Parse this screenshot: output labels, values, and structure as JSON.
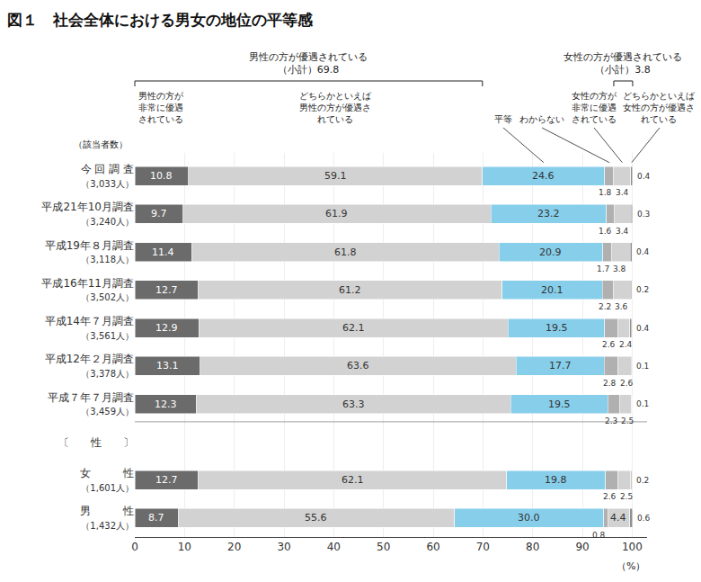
{
  "chart_data": {
    "type": "bar",
    "title": "図１　社会全体における男女の地位の平等感",
    "orientation": "horizontal",
    "stacked": true,
    "data_labels": true,
    "grid": true,
    "categories": [
      "今 回 調 査",
      "平成21年10月調査",
      "平成19年８月調査",
      "平成16年11月調査",
      "平成14年７月調査",
      "平成12年２月調査",
      "平成７年７月調査",
      "〔　　性　　〕",
      "女　　　性",
      "男　　　性"
    ],
    "count_labels": [
      "（3,033人）",
      "（3,240人）",
      "（3,118人）",
      "（3,502人）",
      "（3,561人）",
      "（3,378人）",
      "（3,459人）",
      null,
      "（1,601人）",
      "（1,432人）"
    ],
    "count_header": "（該当者数）",
    "xlabel": "（%）",
    "xlim": [
      0,
      103
    ],
    "xticks": [
      0,
      10,
      20,
      30,
      40,
      50,
      60,
      70,
      80,
      90,
      100
    ],
    "series": [
      {
        "name": "男性の方が\n非常に優遇\nされている",
        "color": "#6b6b6b",
        "group": "男性の方が優遇されている",
        "values": [
          10.8,
          9.7,
          11.4,
          12.7,
          12.9,
          13.1,
          12.3,
          null,
          12.7,
          8.7
        ],
        "value_labels": [
          "10.8",
          "9.7",
          "11.4",
          "12.7",
          "12.9",
          "13.1",
          "12.3",
          null,
          "12.7",
          "8.7"
        ]
      },
      {
        "name": "どちらかといえば\n男性の方が優遇さ\nれている",
        "color": "#d2d2d2",
        "group": "男性の方が優遇されている",
        "values": [
          59.1,
          61.9,
          61.8,
          61.2,
          62.1,
          63.6,
          63.3,
          null,
          62.1,
          55.6
        ],
        "value_labels": [
          "59.1",
          "61.9",
          "61.8",
          "61.2",
          "62.1",
          "63.6",
          "63.3",
          null,
          "62.1",
          "55.6"
        ]
      },
      {
        "name": "平等",
        "color": "#87ceeb",
        "values": [
          24.6,
          23.2,
          20.9,
          20.1,
          19.5,
          17.7,
          19.5,
          null,
          19.8,
          30.0
        ],
        "value_labels": [
          "24.6",
          "23.2",
          "20.9",
          "20.1",
          "19.5",
          "17.7",
          "19.5",
          null,
          "19.8",
          "30.0"
        ]
      },
      {
        "name": "わからない",
        "color": "#b0b0b0",
        "values": [
          1.8,
          1.6,
          1.7,
          2.2,
          2.6,
          2.8,
          2.3,
          null,
          2.6,
          0.8
        ],
        "value_labels": [
          "1.8",
          "1.6",
          "1.7",
          "2.2",
          "2.6",
          "2.8",
          "2.3",
          null,
          "2.6",
          "0.8"
        ]
      },
      {
        "name": "女性の方が\n非常に優遇\nされている",
        "color": "#d2d2d2",
        "group": "女性の方が優遇されている",
        "values": [
          3.4,
          3.4,
          3.8,
          3.6,
          2.4,
          2.6,
          2.5,
          null,
          2.5,
          4.4
        ],
        "value_labels": [
          "3.4",
          "3.4",
          "3.8",
          "3.6",
          "2.4",
          "2.6",
          "2.5",
          null,
          "2.5",
          "4.4"
        ]
      },
      {
        "name": "どちらかといえば\n女性の方が優遇さ\nれている",
        "color": "#909090",
        "group": "女性の方が優遇されている",
        "values": [
          0.4,
          0.3,
          0.4,
          0.2,
          0.4,
          0.1,
          0.1,
          null,
          0.2,
          0.6
        ],
        "value_labels": [
          "0.4",
          "0.3",
          "0.4",
          "0.2",
          "0.4",
          "0.1",
          "0.1",
          null,
          "0.2",
          "0.6"
        ]
      }
    ],
    "groups": [
      {
        "name": "男性の方が優遇されている",
        "subtotal": "（小計）69.8"
      },
      {
        "name": "女性の方が優遇されている",
        "subtotal": "（小計）3.8"
      }
    ]
  }
}
